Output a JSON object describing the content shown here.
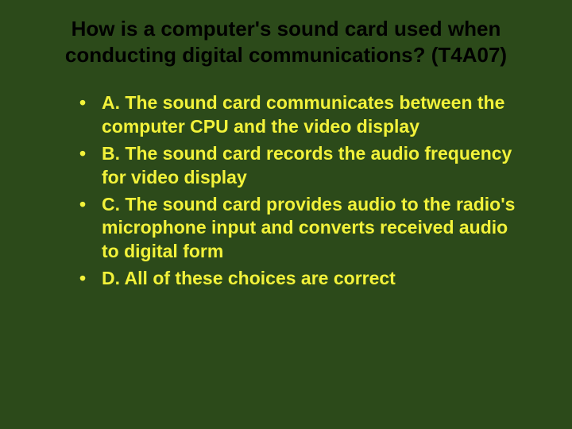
{
  "slide": {
    "background_color": "#2c4a1a",
    "title_color": "#000000",
    "option_color": "#f2f23a",
    "title_fontsize": 26,
    "option_fontsize": 23,
    "title": "How is a computer's sound card used when conducting digital communications? (T4A07)",
    "options": [
      "A. The sound card communicates between the computer CPU and the video display",
      "B. The sound card records the audio frequency for video display",
      "C. The sound card provides audio to the radio's microphone input and converts received audio to digital form",
      "D. All of these choices are correct"
    ]
  }
}
